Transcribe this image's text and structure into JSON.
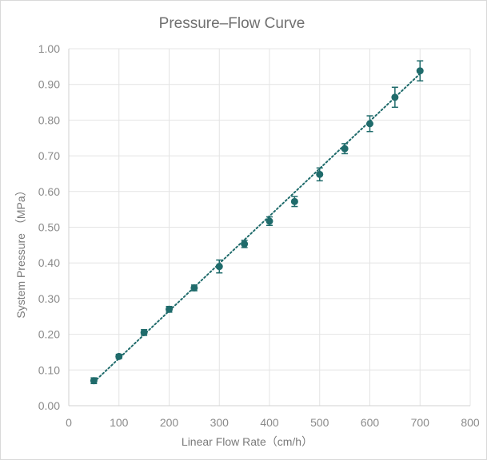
{
  "chart_data": {
    "type": "scatter",
    "title": "Pressure–Flow Curve",
    "xlabel": "Linear Flow Rate（cm/h）",
    "ylabel": "System Pressure （MPa）",
    "xlim": [
      0,
      800
    ],
    "ylim": [
      0.0,
      1.0
    ],
    "x_ticks": [
      0,
      100,
      200,
      300,
      400,
      500,
      600,
      700,
      800
    ],
    "y_ticks": [
      0.0,
      0.1,
      0.2,
      0.3,
      0.4,
      0.5,
      0.6,
      0.7,
      0.8,
      0.9,
      1.0
    ],
    "y_tick_labels": [
      "0.00",
      "0.10",
      "0.20",
      "0.30",
      "0.40",
      "0.50",
      "0.60",
      "0.70",
      "0.80",
      "0.90",
      "1.00"
    ],
    "x_tick_labels": [
      "0",
      "100",
      "200",
      "300",
      "400",
      "500",
      "600",
      "700",
      "800"
    ],
    "grid": true,
    "trendline": "linear, dotted",
    "series": [
      {
        "color": "#1f6b6b",
        "x": [
          50,
          100,
          150,
          200,
          250,
          300,
          350,
          400,
          450,
          500,
          550,
          600,
          650,
          700
        ],
        "y": [
          0.07,
          0.138,
          0.205,
          0.27,
          0.33,
          0.39,
          0.453,
          0.517,
          0.572,
          0.648,
          0.72,
          0.79,
          0.864,
          0.938
        ],
        "error": [
          0.008,
          0.006,
          0.008,
          0.008,
          0.008,
          0.018,
          0.01,
          0.012,
          0.014,
          0.018,
          0.014,
          0.022,
          0.028,
          0.028
        ]
      }
    ],
    "trend": {
      "x": [
        50,
        700
      ],
      "y": [
        0.066,
        0.93
      ]
    }
  }
}
